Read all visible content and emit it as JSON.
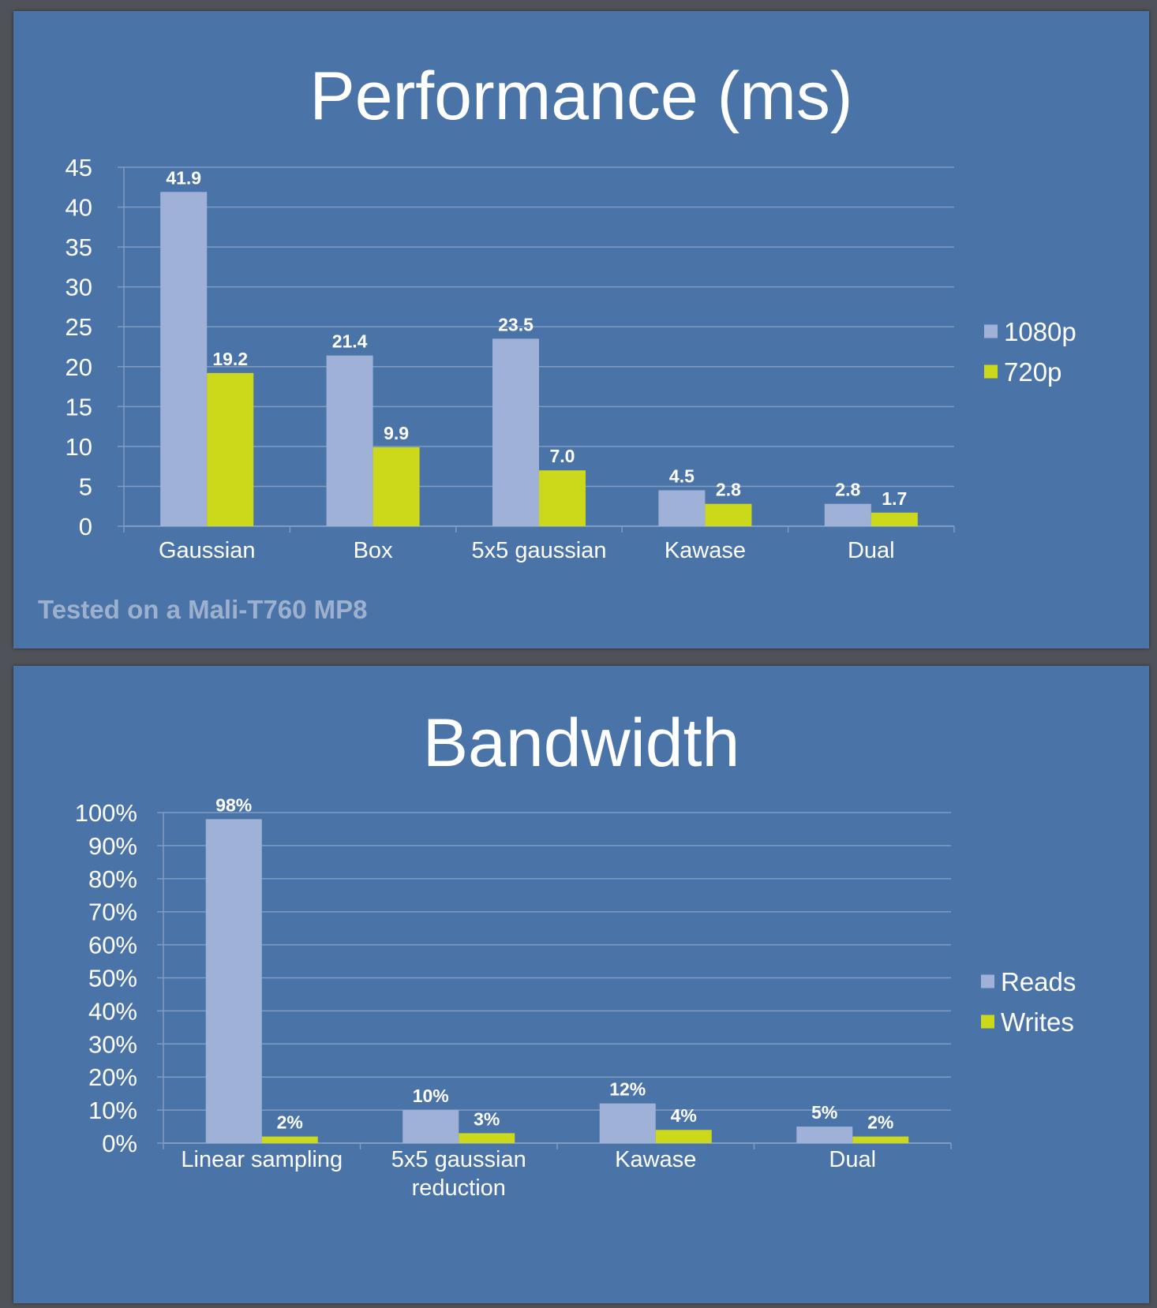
{
  "slides": [
    {
      "title": "Performance (ms)",
      "footnote": "Tested on a Mali-T760 MP8"
    },
    {
      "title": "Bandwidth"
    }
  ],
  "colors": {
    "background": "#4a74a8",
    "series_1": "#a0b1d8",
    "series_2": "#ccd81a",
    "gridline": "#7f9cc4",
    "text": "#ffffff"
  },
  "chart_data": [
    {
      "type": "bar",
      "title": "Performance (ms)",
      "categories": [
        "Gaussian",
        "Box",
        "5x5 gaussian",
        "Kawase",
        "Dual"
      ],
      "series": [
        {
          "name": "1080p",
          "values": [
            41.9,
            21.4,
            23.5,
            4.5,
            2.8
          ],
          "labels": [
            "41.9",
            "21.4",
            "23.5",
            "4.5",
            "2.8"
          ]
        },
        {
          "name": "720p",
          "values": [
            19.2,
            9.9,
            7.0,
            2.8,
            1.7
          ],
          "labels": [
            "19.2",
            "9.9",
            "7.0",
            "2.8",
            "1.7"
          ]
        }
      ],
      "yticks": [
        "0",
        "5",
        "10",
        "15",
        "20",
        "25",
        "30",
        "35",
        "40",
        "45"
      ],
      "ylim": [
        0,
        45
      ],
      "grid": true,
      "legend": "right"
    },
    {
      "type": "bar",
      "title": "Bandwidth",
      "categories": [
        "Linear sampling",
        "5x5 gaussian reduction",
        "Kawase",
        "Dual"
      ],
      "category_lines": [
        [
          "Linear sampling"
        ],
        [
          "5x5 gaussian",
          "reduction"
        ],
        [
          "Kawase"
        ],
        [
          "Dual"
        ]
      ],
      "series": [
        {
          "name": "Reads",
          "values": [
            98,
            10,
            12,
            5
          ],
          "labels": [
            "98%",
            "10%",
            "12%",
            "5%"
          ]
        },
        {
          "name": "Writes",
          "values": [
            2,
            3,
            4,
            2
          ],
          "labels": [
            "2%",
            "3%",
            "4%",
            "2%"
          ]
        }
      ],
      "yticks": [
        "0%",
        "10%",
        "20%",
        "30%",
        "40%",
        "50%",
        "60%",
        "70%",
        "80%",
        "90%",
        "100%"
      ],
      "ylim": [
        0,
        100
      ],
      "grid": true,
      "legend": "right"
    }
  ]
}
